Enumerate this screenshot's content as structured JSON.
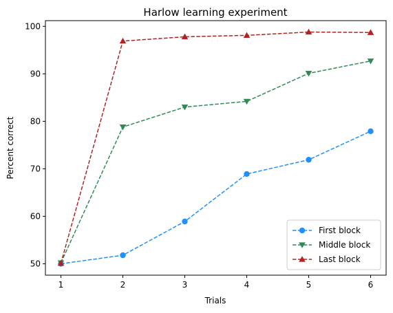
{
  "chart_data": {
    "type": "line",
    "title": "Harlow learning experiment",
    "xlabel": "Trials",
    "ylabel": "Percent correct",
    "x": [
      1,
      2,
      3,
      4,
      5,
      6
    ],
    "xticks": [
      1,
      2,
      3,
      4,
      5,
      6
    ],
    "yticks": [
      50,
      60,
      70,
      80,
      90,
      100
    ],
    "xlim": [
      0.75,
      6.25
    ],
    "ylim": [
      47.6,
      101.2
    ],
    "grid": false,
    "legend_position": "lower-right",
    "series": [
      {
        "name": "First block",
        "values": [
          50,
          51.8,
          58.9,
          68.9,
          71.9,
          77.9
        ],
        "color": "#1e90ff",
        "marker": "circle",
        "linestyle": "dashed"
      },
      {
        "name": "Middle block",
        "values": [
          50.2,
          78.8,
          83.0,
          84.2,
          90.1,
          92.7
        ],
        "color": "#2e8b57",
        "marker": "triangle-down",
        "linestyle": "dashed"
      },
      {
        "name": "Last block",
        "values": [
          50.1,
          96.9,
          97.8,
          98.1,
          98.8,
          98.7
        ],
        "color": "#b22222",
        "marker": "triangle-up",
        "linestyle": "dashed"
      }
    ]
  }
}
